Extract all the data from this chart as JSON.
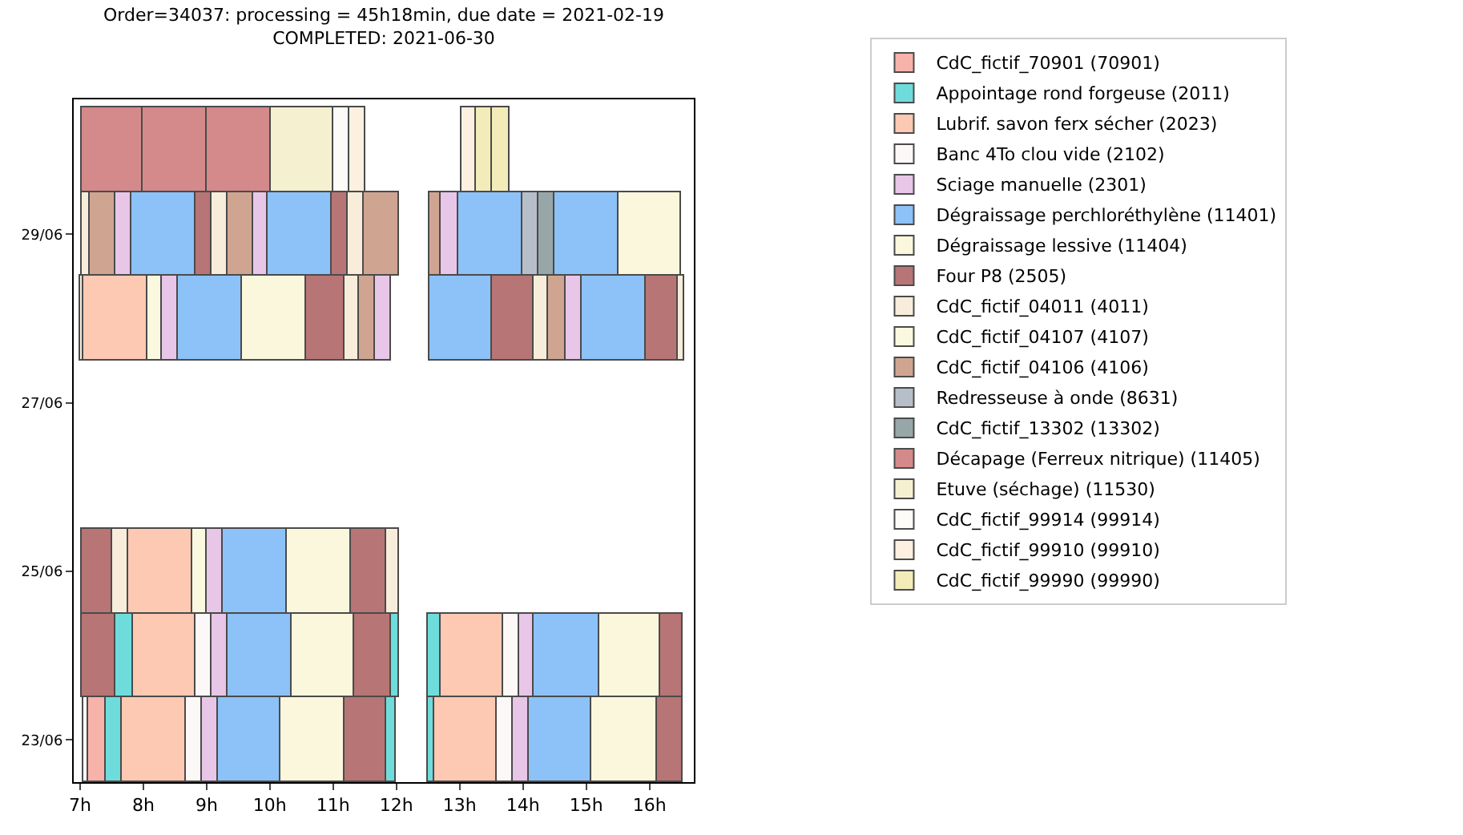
{
  "chart_data": {
    "type": "bar",
    "orientation": "horizontal",
    "title": "Order=34037: processing = 45h18min, due date = 2021-02-19\nCOMPLETED: 2021-06-30",
    "categories": [
      null,
      "29/06",
      null,
      "27/06",
      null,
      "25/06",
      null,
      "23/06"
    ],
    "xlim": [
      6.9,
      16.7
    ],
    "xticks": [
      {
        "value": 7,
        "label": "7h"
      },
      {
        "value": 8,
        "label": "8h"
      },
      {
        "value": 9,
        "label": "9h"
      },
      {
        "value": 10,
        "label": "10h"
      },
      {
        "value": 11,
        "label": "11h"
      },
      {
        "value": 12,
        "label": "12h"
      },
      {
        "value": 13,
        "label": "13h"
      },
      {
        "value": 14,
        "label": "14h"
      },
      {
        "value": 15,
        "label": "15h"
      },
      {
        "value": 16,
        "label": "16h"
      }
    ],
    "legend": "right",
    "series": [
      {
        "name": "CdC_fictif_70901 (70901)",
        "color": "#f7b3aa",
        "base": [
          null,
          null,
          null,
          null,
          null,
          null,
          null,
          7.14
        ],
        "values": [
          null,
          null,
          null,
          null,
          null,
          null,
          null,
          0.26
        ]
      },
      {
        "name": "Appointage rond forgeuse (2011)",
        "color": "#6fdcdc",
        "base": [
          null,
          null,
          null,
          null,
          null,
          null,
          7.56,
          7.4
        ],
        "values": [
          null,
          null,
          null,
          null,
          null,
          null,
          0.28,
          0.25
        ]
      },
      {
        "color": "#6fdcdc",
        "base": [
          null,
          null,
          null,
          null,
          null,
          null,
          11.91,
          11.83
        ],
        "values": [
          null,
          null,
          null,
          null,
          null,
          null,
          0.13,
          0.17
        ]
      },
      {
        "color": "#6fdcdc",
        "base": [
          null,
          null,
          null,
          null,
          null,
          null,
          12.5,
          12.5
        ],
        "values": [
          null,
          null,
          null,
          null,
          null,
          null,
          0.19,
          0.1
        ]
      },
      {
        "name": "Lubrif. savon ferx sécher (2023)",
        "color": "#fdc9b3",
        "base": [
          null,
          null,
          7.06,
          null,
          null,
          7.76,
          7.84,
          7.65
        ],
        "values": [
          null,
          null,
          1.0,
          null,
          null,
          1.01,
          0.98,
          1.01
        ]
      },
      {
        "color": "#fdc9b3",
        "base": [
          null,
          null,
          null,
          null,
          null,
          null,
          12.69,
          12.6
        ],
        "values": [
          null,
          null,
          null,
          null,
          null,
          null,
          0.99,
          0.98
        ]
      },
      {
        "name": "Banc 4To clou vide (2102)",
        "color": "#fcf8f8",
        "base": [
          null,
          null,
          null,
          null,
          null,
          null,
          8.82,
          8.66
        ],
        "values": [
          null,
          null,
          null,
          null,
          null,
          null,
          0.26,
          0.26
        ]
      },
      {
        "color": "#fcf8f8",
        "base": [
          null,
          null,
          null,
          null,
          null,
          null,
          13.68,
          13.58
        ],
        "values": [
          null,
          null,
          null,
          null,
          null,
          null,
          0.26,
          0.26
        ]
      },
      {
        "name": "Sciage manuelle (2301)",
        "color": "#e8c6e8",
        "base": [
          null,
          7.56,
          8.3,
          null,
          null,
          9.0,
          9.08,
          8.92
        ],
        "values": [
          null,
          0.26,
          0.25,
          null,
          null,
          0.25,
          0.26,
          0.25
        ]
      },
      {
        "color": "#e8c6e8",
        "base": [
          null,
          9.74,
          11.66,
          null,
          null,
          null,
          13.94,
          13.84
        ],
        "values": [
          null,
          0.23,
          0.25,
          null,
          null,
          null,
          0.23,
          0.25
        ]
      },
      {
        "color": "#e8c6e8",
        "base": [
          null,
          12.71,
          14.68,
          null,
          null,
          null,
          null,
          null
        ],
        "values": [
          null,
          0.28,
          0.24,
          null,
          null,
          null,
          null,
          null
        ]
      },
      {
        "name": "Dégraissage perchloréthylène (11401)",
        "color": "#8cc2f7",
        "base": [
          null,
          7.82,
          8.55,
          null,
          null,
          9.25,
          9.34,
          9.17
        ],
        "values": [
          null,
          1.0,
          1.01,
          null,
          null,
          1.02,
          1.01,
          0.99
        ]
      },
      {
        "color": "#8cc2f7",
        "base": [
          null,
          9.97,
          12.53,
          null,
          null,
          null,
          14.17,
          14.09
        ],
        "values": [
          null,
          1.01,
          0.98,
          null,
          null,
          null,
          1.03,
          1.0
        ]
      },
      {
        "color": "#8cc2f7",
        "base": [
          null,
          12.99,
          14.92,
          null,
          null,
          null,
          null,
          null
        ],
        "values": [
          null,
          1.0,
          1.02,
          null,
          null,
          null,
          null,
          null
        ]
      },
      {
        "color": "#8cc2f7",
        "base": [
          null,
          14.5,
          null,
          null,
          null,
          null,
          null,
          null
        ],
        "values": [
          null,
          1.0,
          null,
          null,
          null,
          null,
          null,
          null
        ]
      },
      {
        "name": "Dégraissage lessive (11404)",
        "color": "#faf7dd",
        "base": [
          null,
          15.5,
          9.56,
          null,
          null,
          10.27,
          10.35,
          10.16
        ],
        "values": [
          null,
          0.99,
          1.0,
          null,
          null,
          1.01,
          0.97,
          1.02
        ]
      },
      {
        "color": "#faf7dd",
        "base": [
          null,
          null,
          null,
          null,
          null,
          null,
          15.2,
          15.09
        ],
        "values": [
          null,
          null,
          null,
          null,
          null,
          null,
          0.97,
          1.02
        ]
      },
      {
        "name": "Four P8 (2505)",
        "color": "#b87575",
        "base": [
          null,
          8.82,
          10.56,
          null,
          null,
          7.02,
          7.02,
          11.18
        ],
        "values": [
          null,
          0.26,
          0.61,
          null,
          null,
          0.5,
          0.54,
          0.65
        ]
      },
      {
        "color": "#b87575",
        "base": [
          null,
          10.98,
          13.51,
          null,
          null,
          11.28,
          11.32,
          16.11
        ],
        "values": [
          null,
          0.26,
          0.65,
          null,
          null,
          0.55,
          0.59,
          0.4
        ]
      },
      {
        "color": "#b87575",
        "base": [
          null,
          null,
          15.94,
          null,
          null,
          null,
          16.17,
          null
        ],
        "values": [
          null,
          null,
          0.5,
          null,
          null,
          null,
          0.34,
          null
        ]
      },
      {
        "name": "CdC_fictif_04011 (4011)",
        "color": "#f7edda",
        "base": [
          null,
          7.02,
          7.0,
          null,
          null,
          7.52,
          null,
          null
        ],
        "values": [
          null,
          0.14,
          0.06,
          null,
          null,
          0.24,
          null,
          null
        ]
      },
      {
        "color": "#f7edda",
        "base": [
          null,
          9.08,
          11.17,
          null,
          null,
          11.83,
          null,
          null
        ],
        "values": [
          null,
          0.26,
          0.24,
          null,
          null,
          0.2,
          null,
          null
        ]
      },
      {
        "color": "#f7edda",
        "base": [
          null,
          11.24,
          14.16,
          null,
          null,
          null,
          null,
          null
        ],
        "values": [
          null,
          0.25,
          0.24,
          null,
          null,
          null,
          null,
          null
        ]
      },
      {
        "color": "#f7edda",
        "base": [
          null,
          null,
          16.44,
          null,
          null,
          null,
          null,
          null
        ],
        "values": [
          null,
          null,
          0.1,
          null,
          null,
          null,
          null,
          null
        ]
      },
      {
        "name": "CdC_fictif_04107 (4107)",
        "color": "#faf8df",
        "base": [
          null,
          null,
          8.06,
          null,
          null,
          8.77,
          null,
          null
        ],
        "values": [
          null,
          null,
          0.24,
          null,
          null,
          0.23,
          null,
          null
        ]
      },
      {
        "name": "CdC_fictif_04106 (4106)",
        "color": "#cfa591",
        "base": [
          null,
          7.16,
          11.41,
          null,
          null,
          null,
          null,
          null
        ],
        "values": [
          null,
          0.4,
          0.25,
          null,
          null,
          null,
          null,
          null
        ]
      },
      {
        "color": "#cfa591",
        "base": [
          null,
          9.34,
          14.4,
          null,
          null,
          null,
          null,
          null
        ],
        "values": [
          null,
          0.4,
          0.28,
          null,
          null,
          null,
          null,
          null
        ]
      },
      {
        "color": "#cfa591",
        "base": [
          null,
          11.49,
          null,
          null,
          null,
          null,
          null,
          null
        ],
        "values": [
          null,
          0.55,
          null,
          null,
          null,
          null,
          null,
          null
        ]
      },
      {
        "color": "#cfa591",
        "base": [
          null,
          12.53,
          null,
          null,
          null,
          null,
          null,
          null
        ],
        "values": [
          null,
          0.18,
          null,
          null,
          null,
          null,
          null,
          null
        ]
      },
      {
        "name": "Redresseuse à onde (8631)",
        "color": "#b6bfc9",
        "base": [
          null,
          13.99,
          null,
          null,
          null,
          null,
          null,
          null
        ],
        "values": [
          null,
          0.26,
          null,
          null,
          null,
          null,
          null,
          null
        ]
      },
      {
        "name": "CdC_fictif_13302 (13302)",
        "color": "#97a7a7",
        "base": [
          null,
          14.25,
          null,
          null,
          null,
          null,
          null,
          null
        ],
        "values": [
          null,
          0.25,
          null,
          null,
          null,
          null,
          null,
          null
        ]
      },
      {
        "name": "Décapage (Ferreux nitrique) (11405)",
        "color": "#d48a8a",
        "base": [
          7.02,
          null,
          null,
          null,
          null,
          null,
          null,
          null
        ],
        "values": [
          0.98,
          null,
          null,
          null,
          null,
          null,
          null,
          null
        ]
      },
      {
        "color": "#d48a8a",
        "base": [
          8.0,
          null,
          null,
          null,
          null,
          null,
          null,
          null
        ],
        "values": [
          1.0,
          null,
          null,
          null,
          null,
          null,
          null,
          null
        ]
      },
      {
        "color": "#d48a8a",
        "base": [
          9.0,
          null,
          null,
          null,
          null,
          null,
          null,
          null
        ],
        "values": [
          1.01,
          null,
          null,
          null,
          null,
          null,
          null,
          null
        ]
      },
      {
        "name": "Etuve (séchage) (11530)",
        "color": "#f5f1d0",
        "base": [
          10.01,
          null,
          null,
          null,
          null,
          null,
          null,
          null
        ],
        "values": [
          1.0,
          null,
          null,
          null,
          null,
          null,
          null,
          null
        ]
      },
      {
        "name": "CdC_fictif_99914 (99914)",
        "color": "#fdfbf8",
        "base": [
          11.01,
          null,
          null,
          null,
          null,
          null,
          null,
          7.06
        ],
        "values": [
          0.25,
          null,
          null,
          null,
          null,
          null,
          null,
          0.08
        ]
      },
      {
        "name": "CdC_fictif_99910 (99910)",
        "color": "#fdf0e0",
        "base": [
          11.26,
          null,
          null,
          null,
          null,
          null,
          null,
          null
        ],
        "values": [
          0.25,
          null,
          null,
          null,
          null,
          null,
          null,
          null
        ]
      },
      {
        "color": "#fdf0e0",
        "base": [
          13.03,
          null,
          null,
          null,
          null,
          null,
          null,
          null
        ],
        "values": [
          0.23,
          null,
          null,
          null,
          null,
          null,
          null,
          null
        ]
      },
      {
        "name": "CdC_fictif_99990 (99990)",
        "color": "#f3ecb8",
        "base": [
          13.26,
          null,
          null,
          null,
          null,
          null,
          null,
          null
        ],
        "values": [
          0.25,
          null,
          null,
          null,
          null,
          null,
          null,
          null
        ]
      },
      {
        "color": "#f3ecb8",
        "base": [
          13.51,
          null,
          null,
          null,
          null,
          null,
          null,
          null
        ],
        "values": [
          0.27,
          null,
          null,
          null,
          null,
          null,
          null,
          null
        ]
      }
    ]
  }
}
